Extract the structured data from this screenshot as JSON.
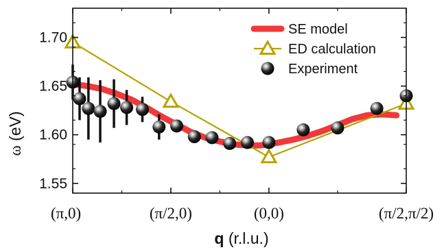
{
  "chart_data": {
    "type": "line",
    "xlabel_bold": "q",
    "xlabel_rest": " (r.l.u.)",
    "ylabel_symbol": "ω",
    "ylabel_rest": " (eV)",
    "ylim": [
      1.54,
      1.73
    ],
    "xlim": [
      0,
      3.4
    ],
    "yticks": [
      1.55,
      1.6,
      1.65,
      1.7
    ],
    "ytick_labels": [
      "1.55",
      "1.60",
      "1.65",
      "1.70"
    ],
    "xticks": [
      0,
      1,
      2,
      3.4
    ],
    "xtick_labels": [
      "(π,0)",
      "(π/2,0)",
      "(0,0)",
      "(π/2,π/2)"
    ],
    "grid": false,
    "legend_position": "top-right",
    "series": [
      {
        "name": "SE model",
        "kind": "line",
        "color": "#f0393a",
        "x": [
          0.0,
          0.15,
          0.3,
          0.45,
          0.6,
          0.75,
          0.9,
          1.05,
          1.2,
          1.35,
          1.5,
          1.65,
          1.8,
          1.9,
          2.0,
          2.1,
          2.25,
          2.4,
          2.55,
          2.7,
          2.85,
          3.0,
          3.15,
          3.3
        ],
        "y": [
          1.652,
          1.65,
          1.647,
          1.642,
          1.636,
          1.628,
          1.619,
          1.611,
          1.603,
          1.597,
          1.593,
          1.59,
          1.589,
          1.589,
          1.59,
          1.592,
          1.595,
          1.599,
          1.604,
          1.61,
          1.616,
          1.62,
          1.621,
          1.62
        ]
      },
      {
        "name": "ED calculation",
        "kind": "line-triangle",
        "color": "#b8a200",
        "x": [
          0,
          1,
          2,
          3.4
        ],
        "y": [
          1.695,
          1.634,
          1.577,
          1.632
        ]
      },
      {
        "name": "Experiment",
        "kind": "scatter-errorbar",
        "color": "#111111",
        "x": [
          0.0,
          0.07,
          0.16,
          0.28,
          0.42,
          0.55,
          0.71,
          0.88,
          1.06,
          1.24,
          1.42,
          1.6,
          1.78,
          2.0,
          2.35,
          2.7,
          3.1,
          3.4
        ],
        "y": [
          1.654,
          1.637,
          1.627,
          1.624,
          1.632,
          1.628,
          1.626,
          1.608,
          1.609,
          1.598,
          1.597,
          1.591,
          1.592,
          1.592,
          1.605,
          1.607,
          1.627,
          1.64
        ],
        "yerr": [
          0.018,
          0.022,
          0.032,
          0.032,
          0.025,
          0.018,
          0.013,
          0.013,
          0,
          0,
          0,
          0,
          0,
          0,
          0,
          0,
          0,
          0
        ]
      }
    ]
  }
}
